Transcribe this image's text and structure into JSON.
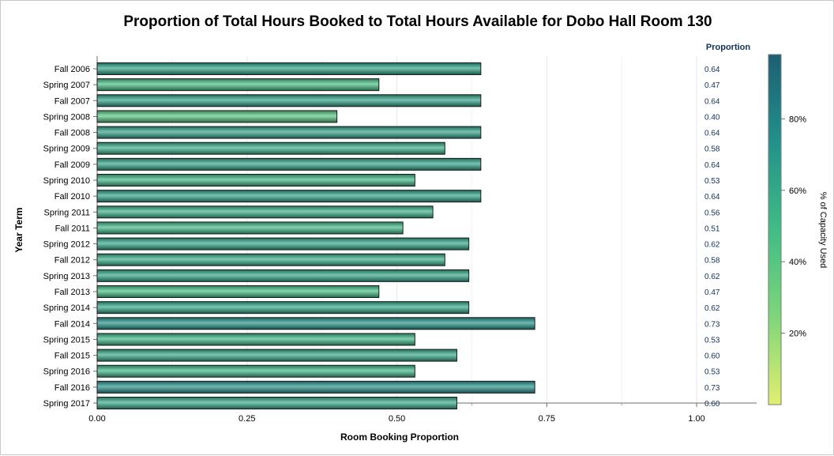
{
  "chart_data": {
    "type": "bar",
    "orientation": "horizontal",
    "title": "Proportion of Total Hours Booked to Total Hours Available for Dobo Hall Room 130",
    "xlabel": "Room Booking Proportion",
    "ylabel": "Year Term",
    "xlim": [
      0,
      1.1
    ],
    "xticks": [
      "0.00",
      "0.25",
      "0.50",
      "0.75",
      "1.00"
    ],
    "value_column_header": "Proportion",
    "categories": [
      "Fall 2006",
      "Spring 2007",
      "Fall 2007",
      "Spring 2008",
      "Fall 2008",
      "Spring 2009",
      "Fall 2009",
      "Spring 2010",
      "Fall 2010",
      "Spring 2011",
      "Fall 2011",
      "Spring 2012",
      "Fall 2012",
      "Spring 2013",
      "Fall 2013",
      "Spring 2014",
      "Fall 2014",
      "Spring 2015",
      "Fall 2015",
      "Spring 2016",
      "Fall 2016",
      "Spring 2017"
    ],
    "values": [
      0.64,
      0.47,
      0.64,
      0.4,
      0.64,
      0.58,
      0.64,
      0.53,
      0.64,
      0.56,
      0.51,
      0.62,
      0.58,
      0.62,
      0.47,
      0.62,
      0.73,
      0.53,
      0.6,
      0.53,
      0.73,
      0.6
    ],
    "value_labels": [
      "0.64",
      "0.47",
      "0.64",
      "0.40",
      "0.64",
      "0.58",
      "0.64",
      "0.53",
      "0.64",
      "0.56",
      "0.51",
      "0.62",
      "0.58",
      "0.62",
      "0.47",
      "0.62",
      "0.73",
      "0.53",
      "0.60",
      "0.53",
      "0.73",
      "0.60"
    ],
    "colorbar": {
      "label": "% of Capacity Used",
      "ticks": [
        "20%",
        "40%",
        "60%",
        "80%"
      ],
      "tick_values": [
        0.2,
        0.4,
        0.6,
        0.8
      ],
      "range": [
        0.0,
        0.98
      ],
      "colors": [
        "#e2ee6e",
        "#7ed67a",
        "#3fbd86",
        "#22918a",
        "#1c5f73"
      ]
    },
    "grid": "vertical",
    "legend": "colorbar-right"
  }
}
